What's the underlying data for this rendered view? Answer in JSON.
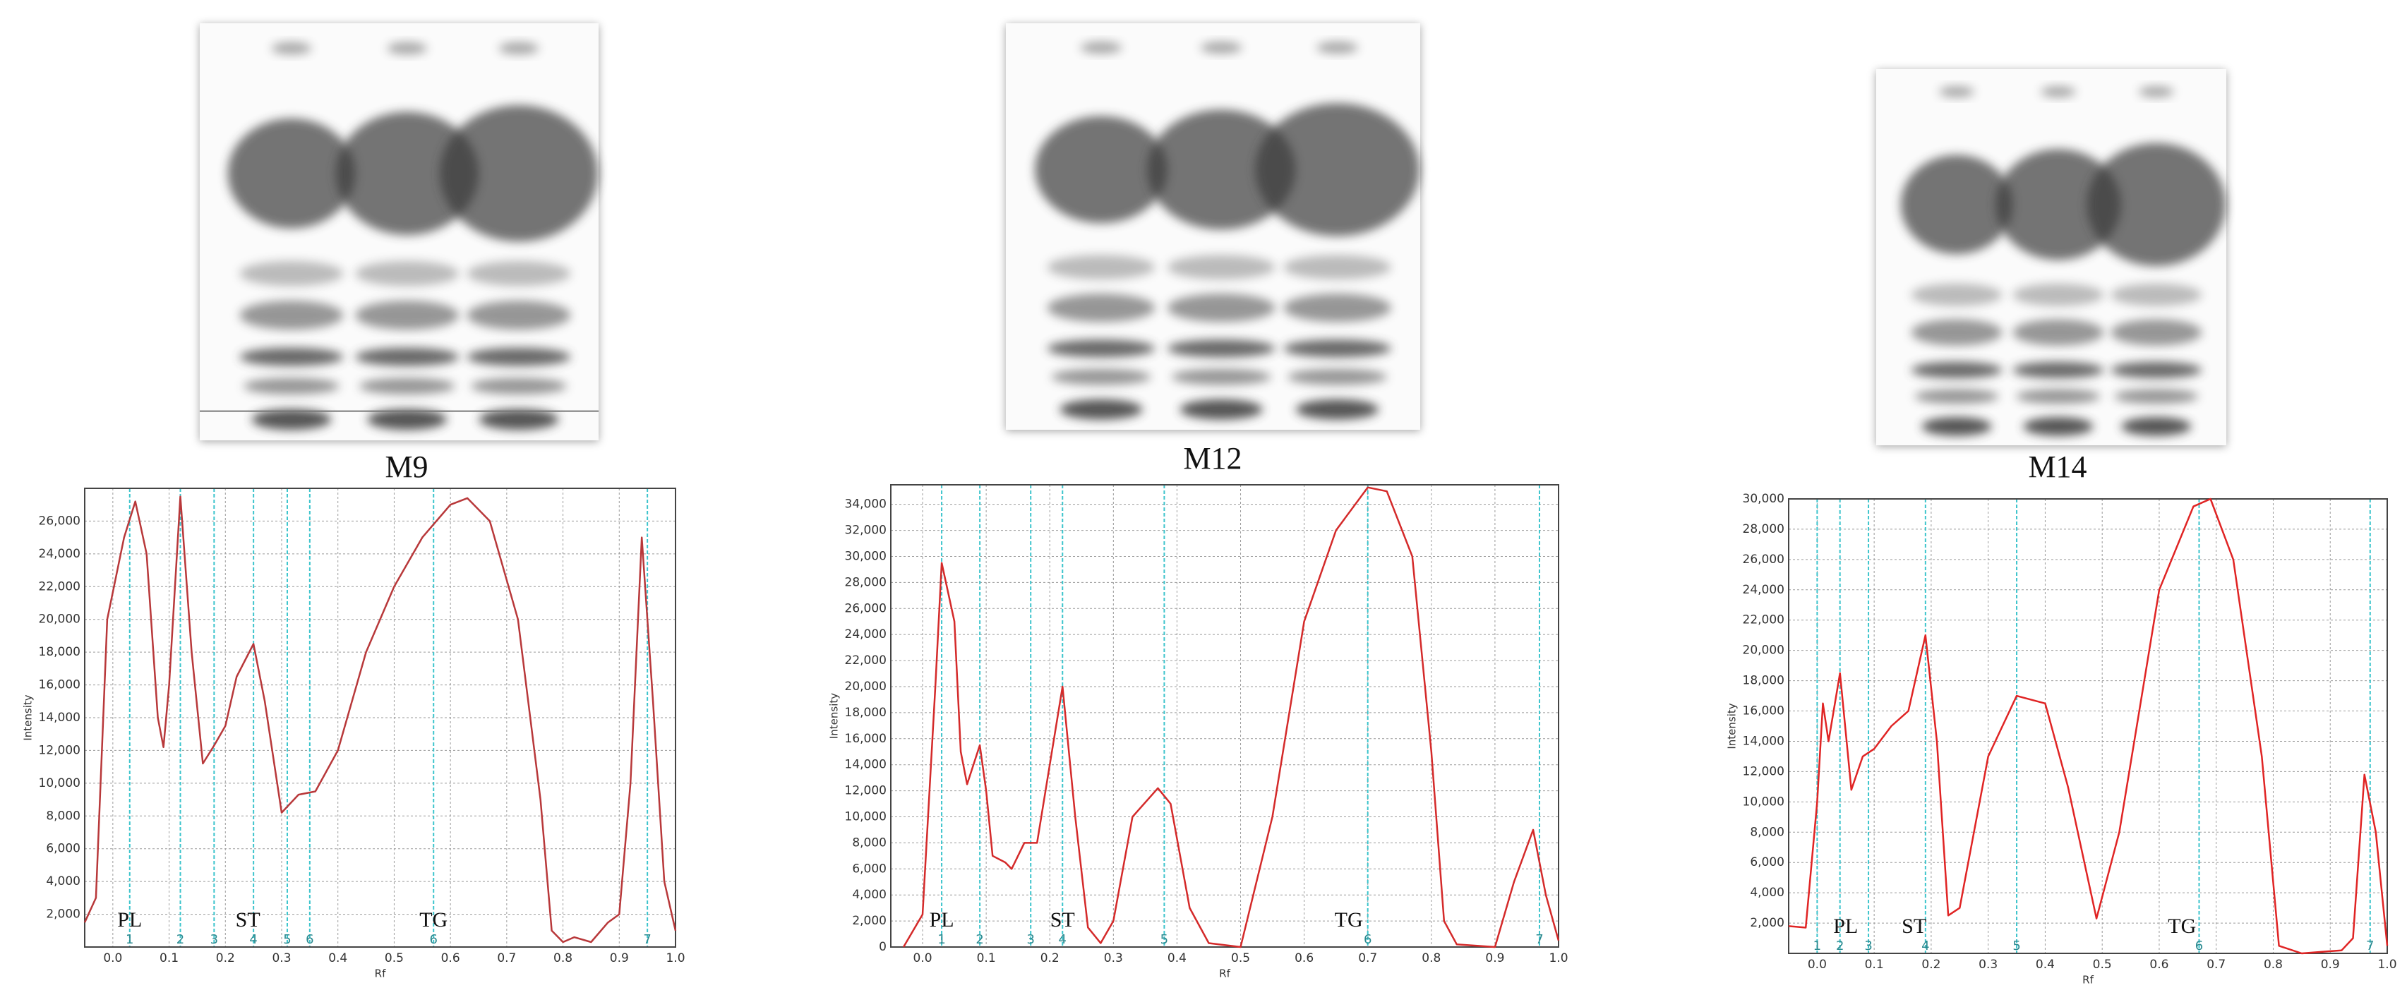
{
  "chart_data": [
    {
      "type": "line",
      "title": "M9",
      "x_label": "Rf",
      "y_label": "Intensity",
      "color": "#b8383a",
      "grid": true,
      "x": [
        -0.05,
        -0.03,
        -0.01,
        0.02,
        0.04,
        0.06,
        0.08,
        0.09,
        0.1,
        0.12,
        0.14,
        0.16,
        0.18,
        0.2,
        0.22,
        0.25,
        0.27,
        0.3,
        0.33,
        0.36,
        0.4,
        0.45,
        0.5,
        0.55,
        0.6,
        0.63,
        0.67,
        0.72,
        0.76,
        0.78,
        0.8,
        0.82,
        0.85,
        0.88,
        0.9,
        0.92,
        0.94,
        0.96,
        0.98,
        1.0
      ],
      "values": [
        1500,
        3000,
        20000,
        25000,
        27200,
        24000,
        14000,
        12200,
        16000,
        27500,
        18000,
        11200,
        12300,
        13500,
        16500,
        18500,
        15000,
        8200,
        9300,
        9500,
        12000,
        18000,
        22000,
        25000,
        27000,
        27400,
        26000,
        20000,
        9000,
        1000,
        300,
        600,
        300,
        1500,
        2000,
        10000,
        25000,
        15000,
        4000,
        1000
      ],
      "xlim": [
        -0.05,
        1.0
      ],
      "ylim": [
        0,
        28000
      ],
      "xticks": [
        {
          "value": 0,
          "label": "0.0"
        },
        0.1,
        0.2,
        0.3,
        0.4,
        0.5,
        0.6,
        0.7,
        0.8,
        0.9,
        {
          "value": 1,
          "label": "1.0"
        }
      ],
      "yticks": [
        {
          "value": 2000,
          "label": "2,000"
        },
        {
          "value": 4000,
          "label": "4,000"
        },
        {
          "value": 6000,
          "label": "6,000"
        },
        {
          "value": 8000,
          "label": "8,000"
        },
        {
          "value": 10000,
          "label": "10,000"
        },
        {
          "value": 12000,
          "label": "12,000"
        },
        {
          "value": 14000,
          "label": "14,000"
        },
        {
          "value": 16000,
          "label": "16,000"
        },
        {
          "value": 18000,
          "label": "18,000"
        },
        {
          "value": 20000,
          "label": "20,000"
        },
        {
          "value": 22000,
          "label": "22,000"
        },
        {
          "value": 24000,
          "label": "24,000"
        },
        {
          "value": 26000,
          "label": "26,000"
        }
      ],
      "annotations": [
        {
          "text": "PL",
          "x": 0.03
        },
        {
          "text": "ST",
          "x": 0.24
        },
        {
          "text": "TG",
          "x": 0.57
        }
      ],
      "bands": [
        {
          "label": "1",
          "x": 0.03
        },
        {
          "label": "2",
          "x": 0.12
        },
        {
          "label": "3",
          "x": 0.18
        },
        {
          "label": "4",
          "x": 0.25
        },
        {
          "label": "5",
          "x": 0.31
        },
        {
          "label": "6",
          "x": 0.35
        },
        {
          "label": "6",
          "x": 0.57
        },
        {
          "label": "7",
          "x": 0.95
        }
      ]
    },
    {
      "type": "line",
      "title": "M12",
      "x_label": "Rf",
      "y_label": "Intensity",
      "color": "#d42a2a",
      "grid": true,
      "x": [
        -0.03,
        0.0,
        0.02,
        0.03,
        0.05,
        0.06,
        0.07,
        0.09,
        0.1,
        0.11,
        0.13,
        0.14,
        0.16,
        0.18,
        0.2,
        0.22,
        0.24,
        0.26,
        0.28,
        0.3,
        0.33,
        0.37,
        0.39,
        0.42,
        0.45,
        0.5,
        0.55,
        0.6,
        0.65,
        0.7,
        0.73,
        0.77,
        0.8,
        0.82,
        0.84,
        0.9,
        0.93,
        0.96,
        0.98,
        1.0
      ],
      "values": [
        0,
        2500,
        20000,
        29500,
        25000,
        15000,
        12500,
        15500,
        12000,
        7000,
        6500,
        6000,
        8000,
        8000,
        14000,
        20000,
        10000,
        1500,
        300,
        2000,
        10000,
        12200,
        11000,
        3000,
        300,
        0,
        10000,
        25000,
        32000,
        35300,
        35000,
        30000,
        15000,
        2000,
        200,
        0,
        5000,
        9000,
        4000,
        500
      ],
      "xlim": [
        -0.05,
        1.0
      ],
      "ylim": [
        0,
        35500
      ],
      "xticks": [
        {
          "value": 0,
          "label": "0.0"
        },
        0.1,
        0.2,
        0.3,
        0.4,
        0.5,
        0.6,
        0.7,
        0.8,
        0.9,
        {
          "value": 1,
          "label": "1.0"
        }
      ],
      "yticks": [
        0,
        {
          "value": 2000,
          "label": "2,000"
        },
        {
          "value": 4000,
          "label": "4,000"
        },
        {
          "value": 6000,
          "label": "6,000"
        },
        {
          "value": 8000,
          "label": "8,000"
        },
        {
          "value": 10000,
          "label": "10,000"
        },
        {
          "value": 12000,
          "label": "12,000"
        },
        {
          "value": 14000,
          "label": "14,000"
        },
        {
          "value": 16000,
          "label": "16,000"
        },
        {
          "value": 18000,
          "label": "18,000"
        },
        {
          "value": 20000,
          "label": "20,000"
        },
        {
          "value": 22000,
          "label": "22,000"
        },
        {
          "value": 24000,
          "label": "24,000"
        },
        {
          "value": 26000,
          "label": "26,000"
        },
        {
          "value": 28000,
          "label": "28,000"
        },
        {
          "value": 30000,
          "label": "30,000"
        },
        {
          "value": 32000,
          "label": "32,000"
        },
        {
          "value": 34000,
          "label": "34,000"
        }
      ],
      "annotations": [
        {
          "text": "PL",
          "x": 0.03
        },
        {
          "text": "ST",
          "x": 0.22
        },
        {
          "text": "TG",
          "x": 0.67
        }
      ],
      "bands": [
        {
          "label": "1",
          "x": 0.03
        },
        {
          "label": "2",
          "x": 0.09
        },
        {
          "label": "3",
          "x": 0.17
        },
        {
          "label": "4",
          "x": 0.22
        },
        {
          "label": "5",
          "x": 0.38
        },
        {
          "label": "6",
          "x": 0.7
        },
        {
          "label": "7",
          "x": 0.97
        }
      ]
    },
    {
      "type": "line",
      "title": "M14",
      "x_label": "Rf",
      "y_label": "Intensity",
      "color": "#e02424",
      "grid": true,
      "x": [
        -0.05,
        -0.02,
        0.0,
        0.01,
        0.02,
        0.04,
        0.06,
        0.08,
        0.1,
        0.13,
        0.16,
        0.19,
        0.21,
        0.23,
        0.25,
        0.3,
        0.35,
        0.4,
        0.44,
        0.49,
        0.53,
        0.6,
        0.66,
        0.69,
        0.73,
        0.78,
        0.81,
        0.85,
        0.92,
        0.94,
        0.96,
        0.98,
        1.0
      ],
      "values": [
        1800,
        1700,
        10000,
        16500,
        14000,
        18500,
        10800,
        13000,
        13500,
        15000,
        16000,
        21000,
        14000,
        2500,
        3000,
        13000,
        17000,
        16500,
        11000,
        2300,
        8000,
        24000,
        29500,
        30000,
        26000,
        13000,
        500,
        0,
        200,
        1000,
        11800,
        8000,
        500
      ],
      "xlim": [
        -0.05,
        1.0
      ],
      "ylim": [
        0,
        30000
      ],
      "xticks": [
        {
          "value": 0,
          "label": "0.0"
        },
        0.1,
        0.2,
        0.3,
        0.4,
        0.5,
        0.6,
        0.7,
        0.8,
        0.9,
        {
          "value": 1,
          "label": "1.0"
        }
      ],
      "yticks": [
        {
          "value": 2000,
          "label": "2,000"
        },
        {
          "value": 4000,
          "label": "4,000"
        },
        {
          "value": 6000,
          "label": "6,000"
        },
        {
          "value": 8000,
          "label": "8,000"
        },
        {
          "value": 10000,
          "label": "10,000"
        },
        {
          "value": 12000,
          "label": "12,000"
        },
        {
          "value": 14000,
          "label": "14,000"
        },
        {
          "value": 16000,
          "label": "16,000"
        },
        {
          "value": 18000,
          "label": "18,000"
        },
        {
          "value": 20000,
          "label": "20,000"
        },
        {
          "value": 22000,
          "label": "22,000"
        },
        {
          "value": 24000,
          "label": "24,000"
        },
        {
          "value": 26000,
          "label": "26,000"
        },
        {
          "value": 28000,
          "label": "28,000"
        },
        {
          "value": 30000,
          "label": "30,000"
        }
      ],
      "annotations": [
        {
          "text": "PL",
          "x": 0.05
        },
        {
          "text": "ST",
          "x": 0.17
        },
        {
          "text": "TG",
          "x": 0.64
        }
      ],
      "bands": [
        {
          "label": "1",
          "x": 0.0
        },
        {
          "label": "2",
          "x": 0.04
        },
        {
          "label": "3",
          "x": 0.09
        },
        {
          "label": "4",
          "x": 0.19
        },
        {
          "label": "5",
          "x": 0.35
        },
        {
          "label": "6",
          "x": 0.67
        },
        {
          "label": "7",
          "x": 0.97
        }
      ]
    }
  ]
}
